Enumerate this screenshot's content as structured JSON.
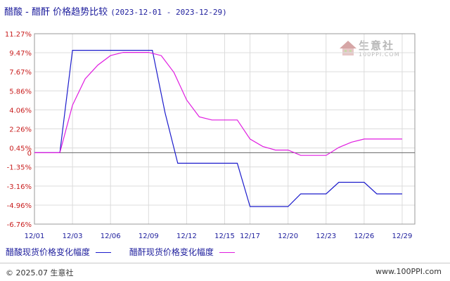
{
  "header": {
    "title": "醋酸 - 醋酐 价格趋势比较",
    "date_range": "(2023-12-01 - 2023-12-29)"
  },
  "watermark": {
    "name": "生意社",
    "url": "100PPI.COM"
  },
  "footer": {
    "copyright": "© 2025.07 生意社",
    "site": "www.100PPI.com"
  },
  "colors": {
    "series1": "#1c1ccc",
    "series2": "#e01ce0",
    "ytick": "#c81e1e",
    "xtick": "#1c1c9c",
    "grid": "#dcdcdc",
    "zero_line": "#666666"
  },
  "chart_data": {
    "type": "line",
    "title": "醋酸 - 醋酐 价格趋势比较",
    "ylim": [
      -6.76,
      11.27
    ],
    "xlim": [
      0,
      30
    ],
    "yticks": [
      "11.27%",
      "9.47%",
      "7.67%",
      "5.86%",
      "4.06%",
      "2.26%",
      "0.45%",
      "-1.35%",
      "-3.16%",
      "-4.96%",
      "-6.76%"
    ],
    "ytick_values": [
      11.27,
      9.47,
      7.67,
      5.86,
      4.06,
      2.26,
      0.45,
      -1.35,
      -3.16,
      -4.96,
      -6.76
    ],
    "zero_label": "0",
    "xticks": [
      "12/01",
      "12/03",
      "12/06",
      "12/09",
      "12/12",
      "12/15",
      "12/17",
      "12/20",
      "12/23",
      "12/26",
      "12/29"
    ],
    "xtick_positions": [
      0,
      3,
      6,
      9,
      12,
      15,
      17,
      20,
      23,
      26,
      29
    ],
    "grid": true,
    "legend_position": "bottom-left",
    "series": [
      {
        "name": "醋酸现货价格变化幅度",
        "points": [
          [
            0,
            0
          ],
          [
            2,
            0
          ],
          [
            3,
            9.7
          ],
          [
            9.3,
            9.7
          ],
          [
            10.3,
            3.8
          ],
          [
            11.3,
            -1.0
          ],
          [
            16,
            -1.0
          ],
          [
            17,
            -5.1
          ],
          [
            20,
            -5.1
          ],
          [
            21,
            -3.9
          ],
          [
            23,
            -3.9
          ],
          [
            24,
            -2.8
          ],
          [
            26,
            -2.8
          ],
          [
            27,
            -3.9
          ],
          [
            29,
            -3.9
          ]
        ]
      },
      {
        "name": "醋酐现货价格变化幅度",
        "points": [
          [
            0,
            0
          ],
          [
            2,
            0
          ],
          [
            3,
            4.5
          ],
          [
            4,
            7.0
          ],
          [
            5,
            8.3
          ],
          [
            6,
            9.2
          ],
          [
            7,
            9.5
          ],
          [
            8,
            9.5
          ],
          [
            9,
            9.5
          ],
          [
            10,
            9.2
          ],
          [
            11,
            7.6
          ],
          [
            12,
            5.0
          ],
          [
            13,
            3.4
          ],
          [
            14,
            3.1
          ],
          [
            15,
            3.1
          ],
          [
            16,
            3.1
          ],
          [
            17,
            1.3
          ],
          [
            18,
            0.6
          ],
          [
            19,
            0.25
          ],
          [
            20,
            0.25
          ],
          [
            21,
            -0.25
          ],
          [
            22,
            -0.25
          ],
          [
            23,
            -0.25
          ],
          [
            24,
            0.5
          ],
          [
            25,
            1.0
          ],
          [
            26,
            1.3
          ],
          [
            27,
            1.3
          ],
          [
            28,
            1.3
          ],
          [
            29,
            1.3
          ]
        ]
      }
    ]
  }
}
